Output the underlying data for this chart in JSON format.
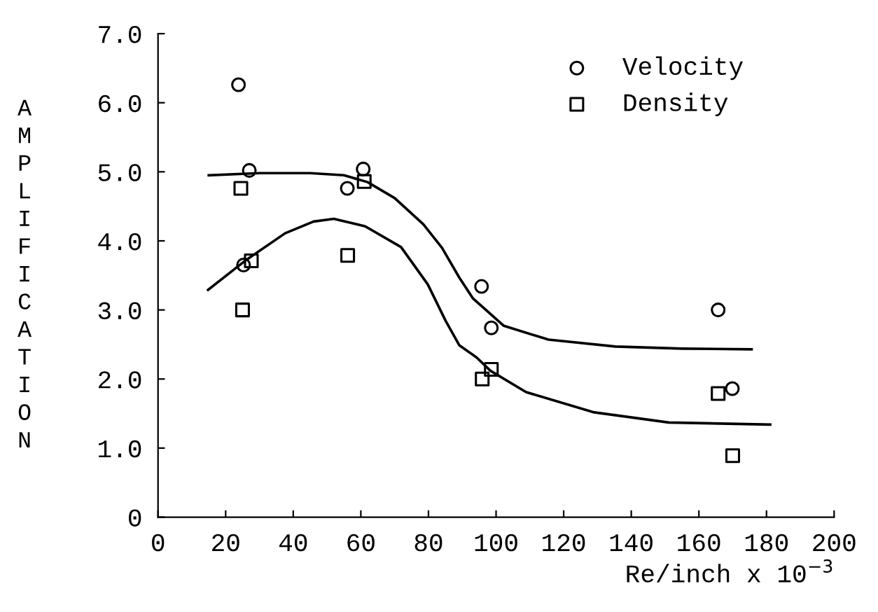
{
  "chart_data": {
    "type": "scatter",
    "xlabel": "Re/inch x 10$^{−3}$",
    "ylabel": "AMPLIFICATION",
    "xlim": [
      0,
      200
    ],
    "xticks": [
      0,
      20,
      40,
      60,
      80,
      100,
      120,
      140,
      160,
      180,
      200
    ],
    "ylim": [
      0,
      7
    ],
    "yticks": [
      0,
      {
        "value": 1,
        "label": "1.0"
      },
      {
        "value": 2,
        "label": "2.0"
      },
      {
        "value": 3,
        "label": "3.0"
      },
      {
        "value": 4,
        "label": "4.0"
      },
      {
        "value": 5,
        "label": "5.0"
      },
      {
        "value": 6,
        "label": "6.0"
      },
      {
        "value": 7,
        "label": "7.0"
      }
    ],
    "legend": "top right",
    "grid": false,
    "series": [
      {
        "name": "Velocity",
        "marker": "circle",
        "color": "#000000",
        "x": [
          23.8,
          27,
          25.3,
          56,
          60.7,
          95.7,
          98.6,
          165.7,
          169.9
        ],
        "values": [
          6.26,
          5.02,
          3.65,
          4.76,
          5.04,
          3.34,
          2.74,
          3.0,
          1.86
        ]
      },
      {
        "name": "Density",
        "marker": "square",
        "color": "#000000",
        "x": [
          24.5,
          27.6,
          25.0,
          56.1,
          61,
          95.9,
          98.6,
          165.7,
          170
        ],
        "values": [
          4.76,
          3.71,
          3.0,
          3.79,
          4.86,
          2.0,
          2.14,
          1.79,
          0.89
        ]
      },
      {
        "type": "line",
        "color": "#000000",
        "line_style": "solid",
        "x": [
          15,
          30,
          45,
          55,
          62,
          70,
          78.5,
          84,
          89.1,
          93.1,
          102.3,
          115.5,
          135.3,
          155.1,
          175.6
        ],
        "values": [
          4.95,
          4.98,
          4.98,
          4.95,
          4.85,
          4.62,
          4.24,
          3.9,
          3.47,
          3.17,
          2.77,
          2.57,
          2.47,
          2.44,
          2.43
        ]
      },
      {
        "type": "line",
        "color": "#000000",
        "line_style": "solid",
        "x": [
          14.8,
          25.7,
          37.6,
          46,
          52,
          61.3,
          71.9,
          79.8,
          85.1,
          89.1,
          94.3,
          98.3,
          108.9,
          128.7,
          151.1,
          181.1
        ],
        "values": [
          3.29,
          3.71,
          4.11,
          4.28,
          4.32,
          4.21,
          3.91,
          3.37,
          2.84,
          2.49,
          2.31,
          2.12,
          1.81,
          1.52,
          1.37,
          1.34
        ]
      }
    ]
  }
}
